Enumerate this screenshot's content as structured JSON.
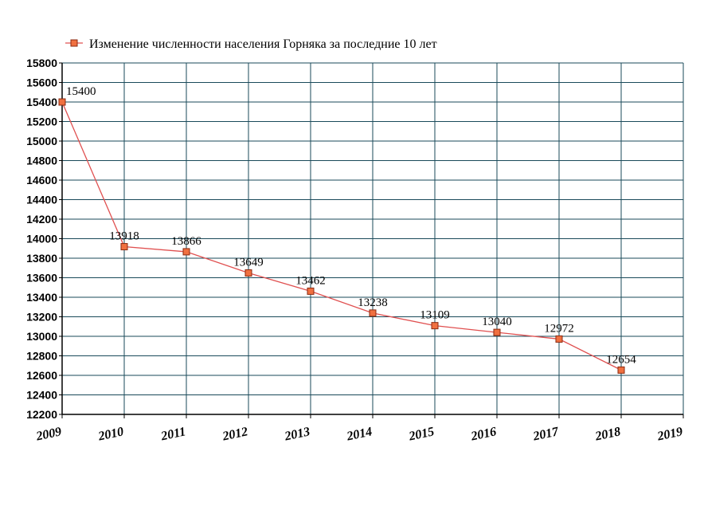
{
  "chart_data": {
    "type": "line",
    "legend": "Изменение численности населения Горняка за последние 10 лет",
    "legend_position": "top-left",
    "x": [
      2009,
      2010,
      2011,
      2012,
      2013,
      2014,
      2015,
      2016,
      2017,
      2018
    ],
    "series": [
      {
        "name": "Изменение численности населения Горняка за последние 10 лет",
        "values": [
          15400,
          13918,
          13866,
          13649,
          13462,
          13238,
          13109,
          13040,
          12972,
          12654
        ],
        "data_labels": [
          "15400",
          "13918",
          "13866",
          "13649",
          "13462",
          "13238",
          "13109",
          "13040",
          "12972",
          "12654"
        ]
      }
    ],
    "xlim": [
      2009,
      2019
    ],
    "xticks": [
      "2009",
      "2010",
      "2011",
      "2012",
      "2013",
      "2014",
      "2015",
      "2016",
      "2017",
      "2018",
      "2019"
    ],
    "ylim": [
      12200,
      15800
    ],
    "yticks": [
      "12200",
      "12400",
      "12600",
      "12800",
      "13000",
      "13200",
      "13400",
      "13600",
      "13800",
      "14000",
      "14200",
      "14400",
      "14600",
      "14800",
      "15000",
      "15200",
      "15400",
      "15600",
      "15800"
    ],
    "grid": true,
    "colors": {
      "line": "#e05050",
      "marker_fill": "#f07040",
      "marker_stroke": "#8a2a10",
      "grid": "#1a4a5a",
      "axis": "#000000"
    }
  }
}
